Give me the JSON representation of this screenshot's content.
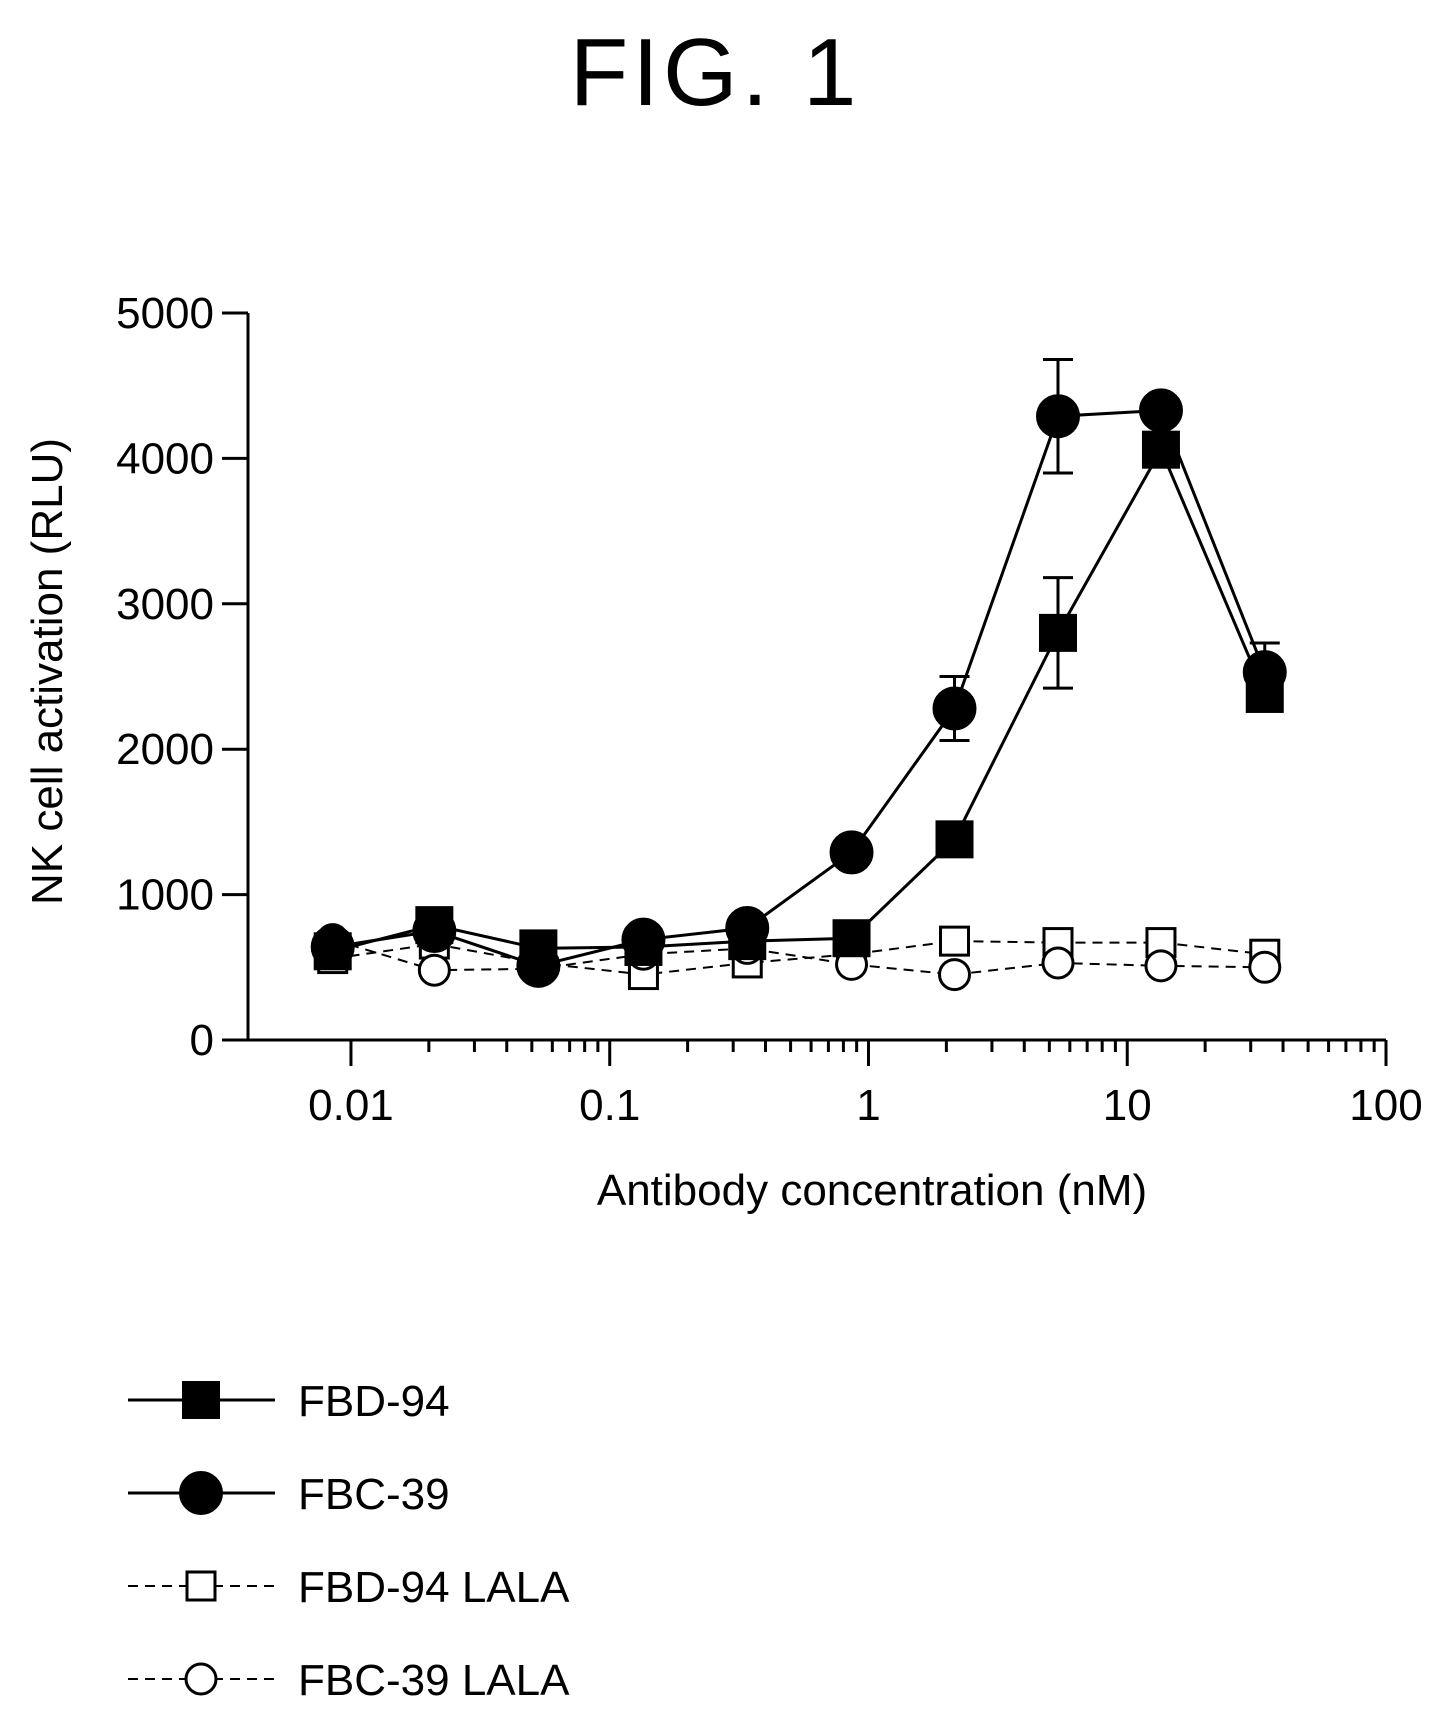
{
  "figure": {
    "title": "FIG. 1"
  },
  "chart_data": {
    "type": "line",
    "title": "",
    "xlabel": "Antibody concentration (nM)",
    "ylabel": "NK cell activation (RLU)",
    "x_scale": "log",
    "xlim": [
      0.004,
      100
    ],
    "ylim": [
      0,
      5000
    ],
    "x_ticks": [
      0.01,
      0.1,
      1,
      10,
      100
    ],
    "x_tick_labels": [
      "0.01",
      "0.1",
      "1",
      "10",
      "100"
    ],
    "y_ticks": [
      0,
      1000,
      2000,
      3000,
      4000,
      5000
    ],
    "y_tick_labels": [
      "0",
      "1000",
      "2000",
      "3000",
      "4000",
      "5000"
    ],
    "grid": false,
    "legend_position": "bottom",
    "x": [
      0.0085,
      0.021,
      0.053,
      0.135,
      0.34,
      0.86,
      2.15,
      5.4,
      13.5,
      34
    ],
    "series": [
      {
        "name": "FBD-94",
        "marker": "filled-square",
        "line": "solid",
        "values": [
          610,
          790,
          630,
          640,
          680,
          700,
          1380,
          2800,
          4060,
          2380
        ],
        "error": [
          null,
          null,
          null,
          null,
          null,
          null,
          null,
          380,
          null,
          null
        ]
      },
      {
        "name": "FBC-39",
        "marker": "filled-circle",
        "line": "solid",
        "values": [
          640,
          750,
          510,
          690,
          770,
          1290,
          2280,
          4290,
          4330,
          2530
        ],
        "error": [
          null,
          null,
          null,
          null,
          null,
          null,
          220,
          390,
          null,
          200
        ]
      },
      {
        "name": "FBD-94 LALA",
        "marker": "open-square",
        "line": "dashed",
        "values": [
          560,
          660,
          530,
          450,
          530,
          590,
          680,
          670,
          670,
          590
        ],
        "error": [
          null,
          null,
          null,
          null,
          null,
          null,
          null,
          null,
          null,
          null
        ]
      },
      {
        "name": "FBC-39 LALA",
        "marker": "open-circle",
        "line": "dashed",
        "values": [
          690,
          480,
          490,
          590,
          630,
          520,
          450,
          530,
          510,
          500
        ],
        "error": [
          null,
          null,
          null,
          null,
          null,
          null,
          null,
          null,
          null,
          null
        ]
      }
    ]
  }
}
